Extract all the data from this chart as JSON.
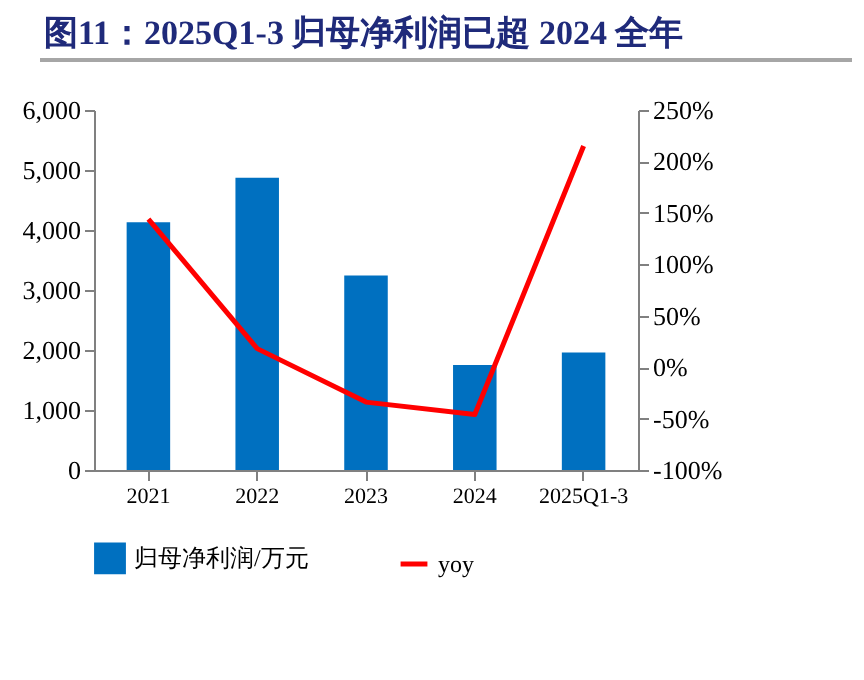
{
  "chart_data": {
    "type": "bar",
    "title": "图11：2025Q1-3 归母净利润已超 2024 全年",
    "categories": [
      "2021",
      "2022",
      "2023",
      "2024",
      "2025Q1-3"
    ],
    "series": [
      {
        "name": "归母净利润/万元",
        "color": "#0070c0",
        "values": [
          4130,
          4870,
          3240,
          1750,
          1960
        ]
      },
      {
        "name": "yoy",
        "type": "line",
        "axis": "y2",
        "color": "#ff0000",
        "values": [
          144,
          18,
          -34,
          -46,
          215
        ]
      }
    ],
    "ylim": [
      0,
      6000
    ],
    "yticks": [
      0,
      {
        "value": 1000,
        "label": "1,000"
      },
      {
        "value": 2000,
        "label": "2,000"
      },
      {
        "value": 3000,
        "label": "3,000"
      },
      {
        "value": 4000,
        "label": "4,000"
      },
      {
        "value": 5000,
        "label": "5,000"
      },
      {
        "value": 6000,
        "label": "6,000"
      }
    ],
    "y2lim": [
      -100,
      250
    ],
    "y2ticks": [
      {
        "value": -100,
        "label": "-100%"
      },
      {
        "value": -50,
        "label": "-50%"
      },
      {
        "value": 0,
        "label": "0%"
      },
      {
        "value": 50,
        "label": "50%"
      },
      {
        "value": 100,
        "label": "100%"
      },
      {
        "value": 150,
        "label": "150%"
      },
      {
        "value": 200,
        "label": "200%"
      },
      {
        "value": 250,
        "label": "250%"
      }
    ],
    "legend": "bottom",
    "grid": false,
    "marker": "none",
    "line_style": "solid"
  }
}
